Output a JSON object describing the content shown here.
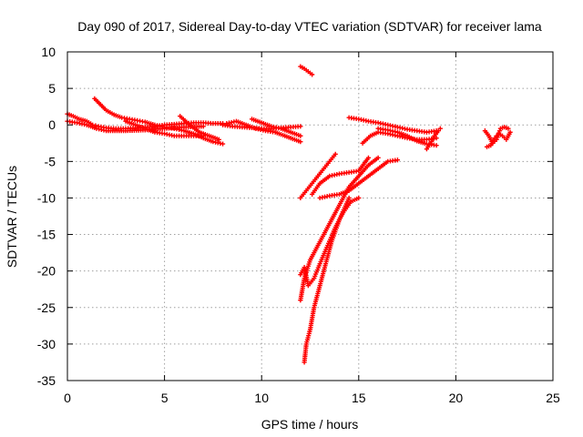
{
  "chart_data": {
    "type": "scatter",
    "title": "Day 090 of 2017, Sidereal Day-to-day VTEC variation (SDTVAR) for receiver lama",
    "xlabel": "GPS time / hours",
    "ylabel": "SDTVAR / TECUs",
    "xlim": [
      0,
      25
    ],
    "ylim": [
      -35,
      10
    ],
    "xticks": [
      0,
      5,
      10,
      15,
      20,
      25
    ],
    "yticks": [
      10,
      5,
      0,
      -5,
      -10,
      -15,
      -20,
      -25,
      -30,
      -35
    ],
    "grid": true,
    "marker": "plus",
    "color": "#ff0000",
    "series": [
      {
        "name": "s1",
        "x": [
          0.0,
          0.3,
          0.6,
          1.0,
          1.3,
          1.6,
          2.0,
          2.5,
          3.0,
          3.5,
          4.0,
          4.5,
          5.0,
          5.5,
          6.0,
          6.5,
          7.0,
          7.5,
          8.0
        ],
        "y": [
          1.5,
          1.2,
          0.8,
          0.5,
          0.0,
          -0.2,
          -0.4,
          -0.5,
          -0.5,
          -0.4,
          -0.3,
          -0.2,
          0.0,
          0.1,
          0.2,
          0.3,
          0.3,
          0.2,
          0.2
        ]
      },
      {
        "name": "s2",
        "x": [
          0.0,
          0.5,
          1.0,
          1.5,
          2.0,
          3.0,
          4.0,
          5.0,
          6.0,
          7.0
        ],
        "y": [
          0.5,
          0.3,
          0.0,
          -0.5,
          -0.8,
          -0.8,
          -0.7,
          -0.5,
          -0.3,
          -0.2
        ]
      },
      {
        "name": "s3",
        "x": [
          1.4,
          1.7,
          2.0,
          2.4,
          2.8,
          3.2,
          3.6,
          4.0,
          4.5,
          5.0,
          5.5,
          6.0,
          6.5,
          7.0,
          7.5,
          8.0
        ],
        "y": [
          3.6,
          2.8,
          2.0,
          1.4,
          1.0,
          0.8,
          0.6,
          0.4,
          0.0,
          -0.3,
          -0.5,
          -0.8,
          -1.2,
          -1.8,
          -2.3,
          -2.6
        ]
      },
      {
        "name": "s4",
        "x": [
          3.0,
          3.5,
          4.0,
          4.5,
          5.0,
          5.5,
          6.0,
          6.5,
          7.0
        ],
        "y": [
          0.5,
          0.0,
          -0.5,
          -1.0,
          -1.2,
          -1.5,
          -1.5,
          -1.5,
          -1.5
        ]
      },
      {
        "name": "s5",
        "x": [
          5.8,
          6.3,
          6.8,
          7.3,
          7.8
        ],
        "y": [
          1.2,
          0.0,
          -1.0,
          -1.5,
          -2.0
        ]
      },
      {
        "name": "s6",
        "x": [
          8.0,
          8.5,
          9.0,
          9.5,
          10.0,
          10.5,
          11.0,
          11.5,
          12.0
        ],
        "y": [
          0.0,
          -0.2,
          -0.3,
          -0.4,
          -0.5,
          -0.5,
          -0.4,
          -0.3,
          -0.2
        ]
      },
      {
        "name": "s7",
        "x": [
          8.2,
          8.7,
          9.2,
          9.7,
          10.2,
          10.7,
          11.2,
          11.7,
          12.0
        ],
        "y": [
          0.2,
          0.5,
          0.0,
          -0.5,
          -0.8,
          -1.0,
          -1.5,
          -2.0,
          -2.3
        ]
      },
      {
        "name": "s8",
        "x": [
          9.5,
          10.0,
          10.5,
          11.0,
          11.5,
          12.0
        ],
        "y": [
          0.8,
          0.3,
          -0.2,
          -0.5,
          -1.0,
          -1.5
        ]
      },
      {
        "name": "s9",
        "x": [
          12.0,
          12.2,
          12.4,
          12.6
        ],
        "y": [
          8.0,
          7.7,
          7.3,
          6.9
        ]
      },
      {
        "name": "s10",
        "x": [
          12.0,
          12.3,
          12.6,
          12.9,
          13.2,
          13.5,
          13.8
        ],
        "y": [
          -10.0,
          -9.0,
          -8.0,
          -7.0,
          -6.0,
          -5.0,
          -4.0
        ]
      },
      {
        "name": "s11",
        "x": [
          12.6,
          13.0,
          13.5,
          14.0,
          14.5,
          15.0,
          15.5
        ],
        "y": [
          -9.5,
          -8.0,
          -7.0,
          -6.7,
          -6.5,
          -6.3,
          -4.5
        ]
      },
      {
        "name": "s12",
        "x": [
          13.0,
          13.5,
          14.0,
          14.5,
          15.0,
          15.5,
          16.0,
          16.5,
          17.0
        ],
        "y": [
          -10.0,
          -9.7,
          -9.5,
          -9.0,
          -8.0,
          -7.0,
          -6.0,
          -5.0,
          -4.8
        ]
      },
      {
        "name": "s13",
        "x": [
          12.0,
          12.2,
          12.5,
          13.0,
          13.5,
          14.0,
          14.5,
          15.0,
          15.5,
          16.0
        ],
        "y": [
          -24.0,
          -21.0,
          -18.5,
          -16.0,
          -13.5,
          -11.0,
          -8.5,
          -7.0,
          -5.5,
          -4.5
        ]
      },
      {
        "name": "s14",
        "x": [
          12.0,
          12.2,
          12.4,
          12.7,
          13.0,
          13.4,
          13.8,
          14.2,
          14.6,
          15.0
        ],
        "y": [
          -20.5,
          -19.5,
          -22.0,
          -21.0,
          -19.0,
          -16.5,
          -14.0,
          -12.0,
          -10.5,
          -10.0
        ]
      },
      {
        "name": "s15",
        "x": [
          12.2,
          12.3,
          12.5,
          12.7,
          13.0,
          13.3,
          13.6,
          14.0,
          14.5
        ],
        "y": [
          -32.5,
          -30.0,
          -28.0,
          -25.0,
          -22.0,
          -19.0,
          -16.0,
          -13.0,
          -10.0
        ]
      },
      {
        "name": "s16",
        "x": [
          14.5,
          15.0,
          15.5,
          16.0,
          16.5,
          17.0,
          17.5,
          18.0,
          18.5,
          19.0
        ],
        "y": [
          1.0,
          0.8,
          0.5,
          0.3,
          0.0,
          -0.3,
          -0.6,
          -0.8,
          -1.0,
          -0.8
        ]
      },
      {
        "name": "s17",
        "x": [
          15.2,
          15.6,
          16.0,
          16.5,
          17.0,
          17.5,
          18.0,
          18.5,
          19.0
        ],
        "y": [
          -2.5,
          -1.5,
          -1.0,
          -1.2,
          -1.5,
          -1.8,
          -2.0,
          -2.0,
          -1.8
        ]
      },
      {
        "name": "s18",
        "x": [
          16.0,
          16.5,
          17.0,
          17.5,
          18.0,
          18.5,
          19.0
        ],
        "y": [
          -0.5,
          -0.7,
          -1.0,
          -1.5,
          -2.2,
          -2.6,
          -2.8
        ]
      },
      {
        "name": "s19",
        "x": [
          18.5,
          18.7,
          18.9,
          19.1,
          19.2
        ],
        "y": [
          -3.3,
          -2.5,
          -1.5,
          -0.8,
          -0.5
        ]
      },
      {
        "name": "s20",
        "x": [
          21.5,
          21.7,
          21.9,
          22.1,
          22.3,
          22.5,
          22.7
        ],
        "y": [
          -0.8,
          -1.5,
          -2.5,
          -2.0,
          -0.5,
          -0.3,
          -0.5
        ]
      },
      {
        "name": "s21",
        "x": [
          21.6,
          21.8,
          22.0,
          22.2,
          22.4,
          22.6,
          22.8
        ],
        "y": [
          -3.0,
          -2.8,
          -1.8,
          -1.2,
          -1.5,
          -2.0,
          -1.0
        ]
      }
    ]
  }
}
